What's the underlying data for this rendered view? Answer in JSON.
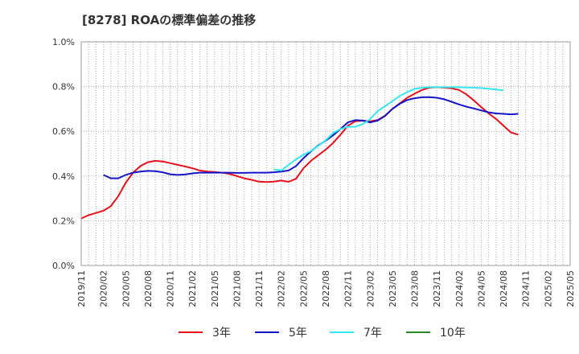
{
  "chart_data": {
    "type": "line",
    "title": "[8278]  ROAの標準偏差の推移",
    "xlabel": "",
    "ylabel": "",
    "ylim": [
      0,
      1.0
    ],
    "y_ticks": [
      0,
      0.2,
      0.4,
      0.6,
      0.8,
      1.0
    ],
    "y_tick_labels": [
      "0.0%",
      "0.2%",
      "0.4%",
      "0.6%",
      "0.8%",
      "1.0%"
    ],
    "x_tick_labels": [
      "2019/11",
      "2020/02",
      "2020/05",
      "2020/08",
      "2020/11",
      "2021/02",
      "2021/05",
      "2021/08",
      "2021/11",
      "2022/02",
      "2022/05",
      "2022/08",
      "2022/11",
      "2023/02",
      "2023/05",
      "2023/08",
      "2023/11",
      "2024/02",
      "2024/05",
      "2024/08",
      "2024/11",
      "2025/02",
      "2025/05"
    ],
    "x_start": "2019/11",
    "legend_position": "bottom",
    "series": [
      {
        "name": "3年",
        "color": "#e8101a",
        "start_month": 0,
        "values": [
          0.21,
          0.225,
          0.235,
          0.245,
          0.265,
          0.31,
          0.37,
          0.415,
          0.445,
          0.462,
          0.468,
          0.465,
          0.458,
          0.45,
          0.443,
          0.435,
          0.425,
          0.42,
          0.418,
          0.415,
          0.41,
          0.4,
          0.39,
          0.383,
          0.375,
          0.373,
          0.375,
          0.38,
          0.374,
          0.388,
          0.435,
          0.468,
          0.493,
          0.518,
          0.548,
          0.585,
          0.625,
          0.645,
          0.648,
          0.645,
          0.65,
          0.67,
          0.7,
          0.725,
          0.75,
          0.768,
          0.785,
          0.795,
          0.797,
          0.795,
          0.792,
          0.785,
          0.765,
          0.738,
          0.708,
          0.68,
          0.655,
          0.625,
          0.595,
          0.585
        ]
      },
      {
        "name": "5年",
        "color": "#1515c8",
        "start_month": 3,
        "values": [
          0.405,
          0.39,
          0.39,
          0.405,
          0.415,
          0.42,
          0.423,
          0.422,
          0.417,
          0.408,
          0.405,
          0.407,
          0.412,
          0.415,
          0.415,
          0.415,
          0.415,
          0.415,
          0.414,
          0.414,
          0.415,
          0.415,
          0.415,
          0.417,
          0.42,
          0.425,
          0.445,
          0.48,
          0.51,
          0.537,
          0.558,
          0.582,
          0.61,
          0.64,
          0.65,
          0.648,
          0.64,
          0.648,
          0.668,
          0.7,
          0.723,
          0.74,
          0.748,
          0.752,
          0.753,
          0.75,
          0.743,
          0.732,
          0.72,
          0.71,
          0.702,
          0.693,
          0.685,
          0.68,
          0.678,
          0.676,
          0.678
        ]
      },
      {
        "name": "7年",
        "color": "#35e8f0",
        "start_month": 26,
        "values": [
          0.43,
          0.425,
          0.45,
          0.475,
          0.495,
          0.512,
          0.535,
          0.56,
          0.592,
          0.61,
          0.62,
          0.62,
          0.632,
          0.655,
          0.69,
          0.712,
          0.735,
          0.758,
          0.775,
          0.79,
          0.795,
          0.797,
          0.797,
          0.797,
          0.797,
          0.797,
          0.796,
          0.795,
          0.793,
          0.79,
          0.787,
          0.783
        ]
      },
      {
        "name": "10年",
        "color": "#2a8a2a",
        "start_month": 0,
        "values": []
      }
    ]
  }
}
